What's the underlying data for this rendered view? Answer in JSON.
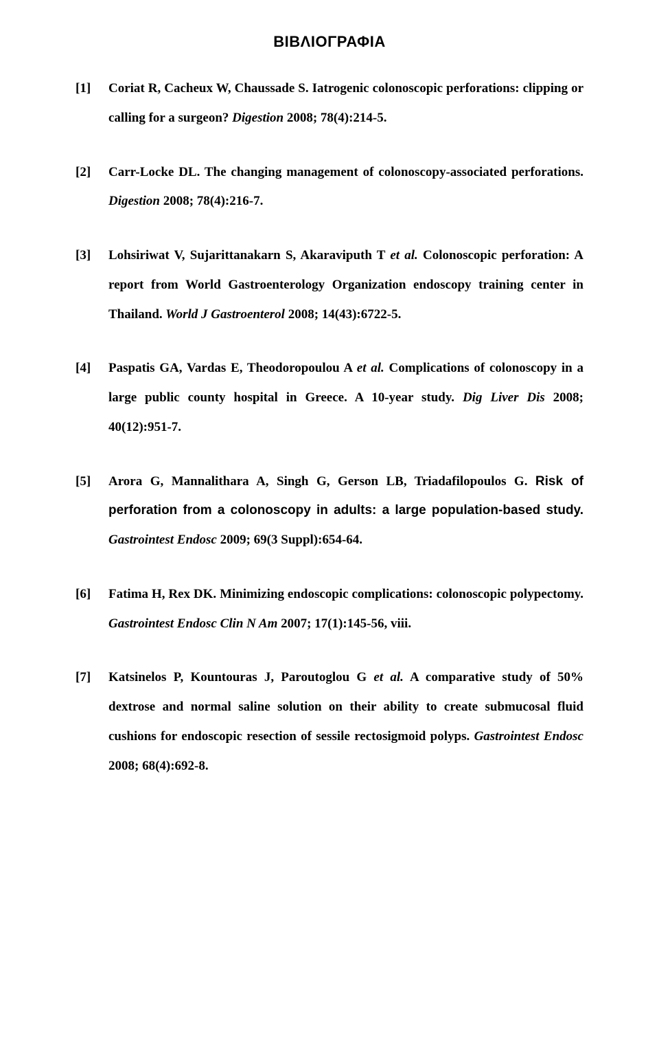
{
  "heading": "ΒΙΒΛΙΟΓΡΑΦΙΑ",
  "colors": {
    "background": "#ffffff",
    "text": "#000000"
  },
  "typography": {
    "body_font": "Times New Roman",
    "heading_font": "Arial",
    "heading_fontsize_pt": 16,
    "body_fontsize_pt": 14,
    "line_height": 2.25
  },
  "refs": [
    {
      "num": "[1]",
      "authors": "Coriat R, Cacheux W, Chaussade S. ",
      "title": "Iatrogenic colonoscopic perforations: clipping or calling for a surgeon?",
      "journal": " Digestion",
      "citation": " 2008; 78(4):214-5."
    },
    {
      "num": "[2]",
      "authors": "Carr-Locke DL. ",
      "title": "The changing management of colonoscopy-associated perforations.",
      "journal": " Digestion",
      "citation": " 2008; 78(4):216-7."
    },
    {
      "num": "[3]",
      "authors_pre": "Lohsiriwat V, Sujarittanakarn S, Akaraviputh T ",
      "authors_etal": "et al.",
      "title": " Colonoscopic perforation: A report from World Gastroenterology Organization endoscopy training center in Thailand.",
      "journal": " World J Gastroenterol",
      "citation": " 2008; 14(43):6722-5."
    },
    {
      "num": "[4]",
      "authors_pre": "Paspatis GA, Vardas E, Theodoropoulou A ",
      "authors_etal": "et al.",
      "title": " Complications of colonoscopy in a large public county hospital in Greece. A 10-year study.",
      "journal": " Dig Liver Dis",
      "citation": " 2008; 40(12):951-7."
    },
    {
      "num": "[5]",
      "authors": "Arora G, Mannalithara A, Singh G, Gerson LB, Triadafilopoulos G. ",
      "title_sans": "Risk of perforation from a colonoscopy in adults: a large population-based study.",
      "journal": " Gastrointest Endosc",
      "citation": " 2009; 69(3 Suppl):654-64."
    },
    {
      "num": "[6]",
      "authors": "Fatima H, Rex DK. ",
      "title": "Minimizing endoscopic complications: colonoscopic polypectomy.",
      "journal": " Gastrointest Endosc Clin N Am",
      "citation": " 2007; 17(1):145-56, viii."
    },
    {
      "num": "[7]",
      "authors_pre": "Katsinelos P, Kountouras J, Paroutoglou G ",
      "authors_etal": "et al.",
      "title": " A comparative study of 50% dextrose and normal saline solution on their ability to create submucosal fluid cushions for endoscopic resection of sessile rectosigmoid polyps.",
      "journal": " Gastrointest Endosc",
      "citation": " 2008; 68(4):692-8."
    }
  ]
}
